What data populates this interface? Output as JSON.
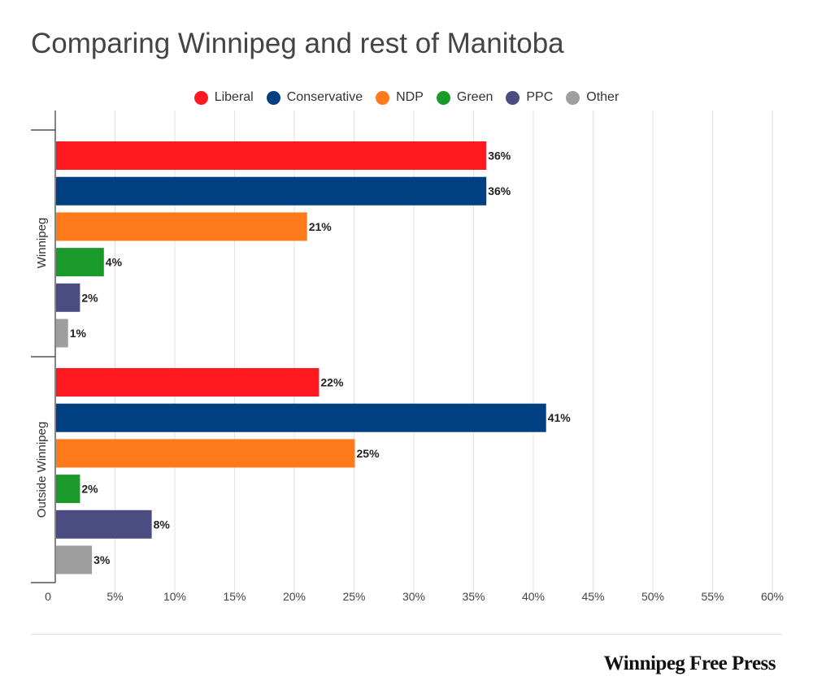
{
  "chart_data": {
    "type": "bar",
    "orientation": "horizontal",
    "title": "Comparing Winnipeg and rest of Manitoba",
    "categories": [
      "Winnipeg",
      "Outside Winnipeg"
    ],
    "series": [
      {
        "name": "Liberal",
        "color": "#ff1a22",
        "values": [
          36,
          22
        ],
        "labels": [
          "36%",
          "22%"
        ]
      },
      {
        "name": "Conservative",
        "color": "#003f82",
        "values": [
          36,
          41
        ],
        "labels": [
          "36%",
          "41%"
        ]
      },
      {
        "name": "NDP",
        "color": "#ff7a1a",
        "values": [
          21,
          25
        ],
        "labels": [
          "21%",
          "25%"
        ]
      },
      {
        "name": "Green",
        "color": "#1a9a2a",
        "values": [
          4,
          2
        ],
        "labels": [
          "4%",
          "2%"
        ]
      },
      {
        "name": "PPC",
        "color": "#4a4c82",
        "values": [
          2,
          8
        ],
        "labels": [
          "2%",
          "8%"
        ]
      },
      {
        "name": "Other",
        "color": "#9e9e9e",
        "values": [
          1,
          3
        ],
        "labels": [
          "1%",
          "3%"
        ]
      }
    ],
    "xlim": [
      0,
      60
    ],
    "xticks": [
      0,
      5,
      10,
      15,
      20,
      25,
      30,
      35,
      40,
      45,
      50,
      55,
      60
    ],
    "xtick_labels": [
      "0",
      "5%",
      "10%",
      "15%",
      "20%",
      "25%",
      "30%",
      "35%",
      "40%",
      "45%",
      "50%",
      "55%",
      "60%"
    ],
    "legend_position": "top-center",
    "grid": true
  },
  "branding": {
    "name": "Winnipeg Free Press"
  }
}
